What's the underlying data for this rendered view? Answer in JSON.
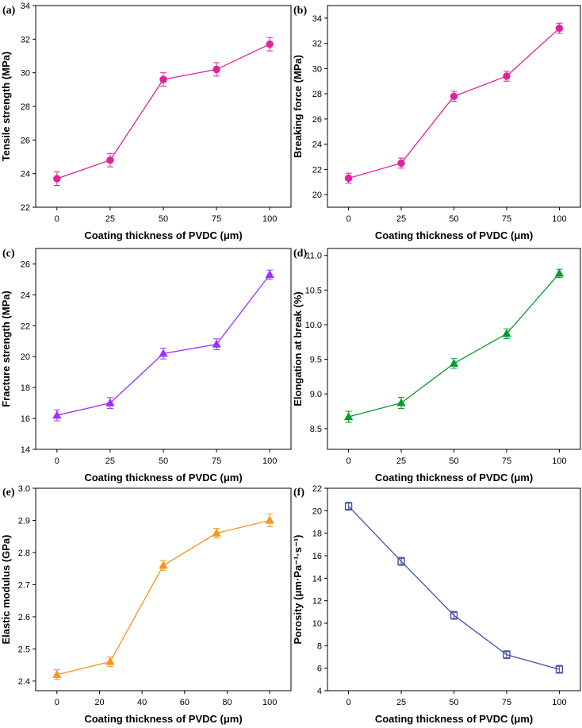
{
  "chart_data": [
    {
      "panel": "(a)",
      "type": "line",
      "xlabel": "Coating thickness of PVDC (μm)",
      "ylabel": "Tensile strength (MPa)",
      "x": [
        0,
        25,
        50,
        75,
        100
      ],
      "xlim": [
        -10,
        110
      ],
      "xticks": [
        0,
        25,
        50,
        75,
        100
      ],
      "ylim": [
        22,
        34
      ],
      "yticks": [
        22,
        24,
        26,
        28,
        30,
        32,
        34
      ],
      "series": [
        {
          "values": [
            23.7,
            24.8,
            29.6,
            30.2,
            31.7
          ],
          "errors": [
            0.4,
            0.4,
            0.4,
            0.4,
            0.4
          ],
          "color": "#e0239a",
          "marker": "circle"
        }
      ]
    },
    {
      "panel": "(b)",
      "type": "line",
      "xlabel": "Coating thickness of PVDC (μm)",
      "ylabel": "Breaking force (MPa)",
      "x": [
        0,
        25,
        50,
        75,
        100
      ],
      "xlim": [
        -10,
        110
      ],
      "xticks": [
        0,
        25,
        50,
        75,
        100
      ],
      "ylim": [
        19,
        35
      ],
      "yticks": [
        20,
        22,
        24,
        26,
        28,
        30,
        32,
        34
      ],
      "series": [
        {
          "values": [
            21.3,
            22.5,
            27.8,
            29.4,
            33.2
          ],
          "errors": [
            0.4,
            0.4,
            0.4,
            0.4,
            0.4
          ],
          "color": "#e0239a",
          "marker": "circle"
        }
      ]
    },
    {
      "panel": "(c)",
      "type": "line",
      "xlabel": "Coating thickness of PVDC (μm)",
      "ylabel": "Fracture strength (MPa)",
      "x": [
        0,
        25,
        50,
        75,
        100
      ],
      "xlim": [
        -10,
        110
      ],
      "xticks": [
        0,
        25,
        50,
        75,
        100
      ],
      "ylim": [
        14,
        27
      ],
      "yticks": [
        14,
        16,
        18,
        20,
        22,
        24,
        26
      ],
      "series": [
        {
          "values": [
            16.2,
            17.0,
            20.2,
            20.8,
            25.3
          ],
          "errors": [
            0.35,
            0.35,
            0.35,
            0.35,
            0.3
          ],
          "color": "#9b30ff",
          "marker": "triangle"
        }
      ]
    },
    {
      "panel": "(d)",
      "type": "line",
      "xlabel": "Coating thickness of PVDC (μm)",
      "ylabel": "Elongation at break (%)",
      "x": [
        0,
        25,
        50,
        75,
        100
      ],
      "xlim": [
        -10,
        110
      ],
      "xticks": [
        0,
        25,
        50,
        75,
        100
      ],
      "ylim": [
        8.2,
        11.1
      ],
      "yticks": [
        8.5,
        9.0,
        9.5,
        10.0,
        10.5,
        11.0
      ],
      "ytick_decimals": 1,
      "series": [
        {
          "values": [
            8.67,
            8.87,
            9.44,
            9.87,
            10.74
          ],
          "errors": [
            0.08,
            0.08,
            0.07,
            0.07,
            0.06
          ],
          "color": "#0a9a2e",
          "marker": "triangle"
        }
      ]
    },
    {
      "panel": "(e)",
      "type": "line",
      "xlabel": "Coating thickness of PVDC (μm)",
      "ylabel": "Elastic modulus (GPa)",
      "x": [
        0,
        25,
        50,
        75,
        100
      ],
      "xlim": [
        -10,
        110
      ],
      "xticks": [
        0,
        20,
        40,
        60,
        80,
        100
      ],
      "ylim": [
        2.37,
        3.0
      ],
      "yticks": [
        2.4,
        2.5,
        2.6,
        2.7,
        2.8,
        2.9,
        3.0
      ],
      "ytick_decimals": 1,
      "series": [
        {
          "values": [
            2.42,
            2.46,
            2.76,
            2.86,
            2.9
          ],
          "errors": [
            0.015,
            0.015,
            0.015,
            0.015,
            0.02
          ],
          "color": "#f7941d",
          "marker": "triangle"
        }
      ]
    },
    {
      "panel": "(f)",
      "type": "line",
      "xlabel": "Coating thickness of PVDC (μm)",
      "ylabel": "Porosity (μm·Pa⁻¹·s⁻¹)",
      "x": [
        0,
        25,
        50,
        75,
        100
      ],
      "xlim": [
        -10,
        110
      ],
      "xticks": [
        0,
        25,
        50,
        75,
        100
      ],
      "ylim": [
        4,
        22
      ],
      "yticks": [
        4,
        6,
        8,
        10,
        12,
        14,
        16,
        18,
        20,
        22
      ],
      "series": [
        {
          "values": [
            20.4,
            15.5,
            10.7,
            7.2,
            5.9
          ],
          "errors": [
            0.35,
            0.35,
            0.35,
            0.35,
            0.35
          ],
          "color": "#4652a8",
          "marker": "square"
        }
      ]
    }
  ]
}
